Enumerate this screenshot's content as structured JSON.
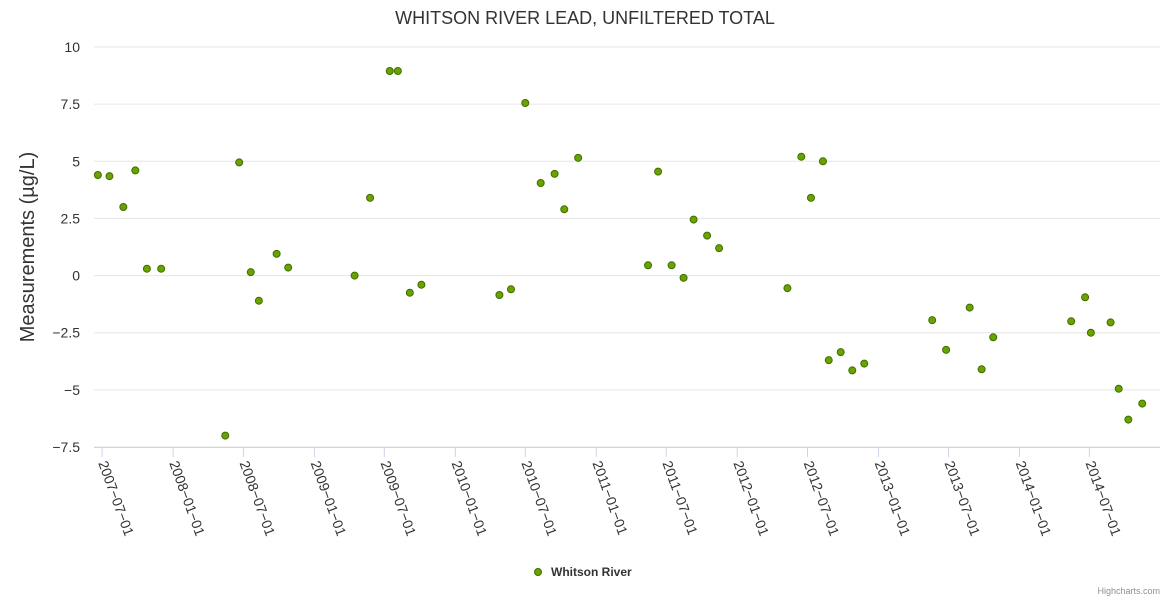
{
  "chart_data": {
    "type": "scatter",
    "title": "WHITSON RIVER LEAD, UNFILTERED TOTAL",
    "ylabel": "Measurements (µg/L)",
    "xlabel": "",
    "ylim": [
      -7.5,
      10
    ],
    "xlim": [
      "2007-06-10",
      "2014-12-31"
    ],
    "grid": true,
    "y_ticks": [
      {
        "value": 10,
        "label": "10"
      },
      {
        "value": 7.5,
        "label": "7.5"
      },
      {
        "value": 5,
        "label": "5"
      },
      {
        "value": 2.5,
        "label": "2.5"
      },
      {
        "value": 0,
        "label": "0"
      },
      {
        "value": -2.5,
        "label": "−2.5"
      },
      {
        "value": -5,
        "label": "−5"
      },
      {
        "value": -7.5,
        "label": "−7.5"
      }
    ],
    "x_ticks": [
      {
        "date": "2007-07-01",
        "label": "2007−07−01"
      },
      {
        "date": "2008-01-01",
        "label": "2008−01−01"
      },
      {
        "date": "2008-07-01",
        "label": "2008−07−01"
      },
      {
        "date": "2009-01-01",
        "label": "2009−01−01"
      },
      {
        "date": "2009-07-01",
        "label": "2009−07−01"
      },
      {
        "date": "2010-01-01",
        "label": "2010−01−01"
      },
      {
        "date": "2010-07-01",
        "label": "2010−07−01"
      },
      {
        "date": "2011-01-01",
        "label": "2011−01−01"
      },
      {
        "date": "2011-07-01",
        "label": "2011−07−01"
      },
      {
        "date": "2012-01-01",
        "label": "2012−01−01"
      },
      {
        "date": "2012-07-01",
        "label": "2012−07−01"
      },
      {
        "date": "2013-01-01",
        "label": "2013−01−01"
      },
      {
        "date": "2013-07-01",
        "label": "2013−07−01"
      },
      {
        "date": "2014-01-01",
        "label": "2014−01−01"
      },
      {
        "date": "2014-07-01",
        "label": "2014−07−01"
      }
    ],
    "series": [
      {
        "name": "Whitson River",
        "color": "#6aa300",
        "stroke": "#3f6e00",
        "points": [
          {
            "x": "2007-06-20",
            "y": 4.4
          },
          {
            "x": "2007-07-20",
            "y": 4.35
          },
          {
            "x": "2007-08-25",
            "y": 3.0
          },
          {
            "x": "2007-09-25",
            "y": 4.6
          },
          {
            "x": "2007-10-25",
            "y": 0.3
          },
          {
            "x": "2007-12-01",
            "y": 0.3
          },
          {
            "x": "2008-05-15",
            "y": -7.0
          },
          {
            "x": "2008-06-20",
            "y": 4.95
          },
          {
            "x": "2008-07-20",
            "y": 0.15
          },
          {
            "x": "2008-08-10",
            "y": -1.1
          },
          {
            "x": "2008-09-25",
            "y": 0.95
          },
          {
            "x": "2008-10-25",
            "y": 0.35
          },
          {
            "x": "2009-04-15",
            "y": 0.0
          },
          {
            "x": "2009-05-25",
            "y": 3.4
          },
          {
            "x": "2009-07-15",
            "y": 8.95
          },
          {
            "x": "2009-08-05",
            "y": 8.95
          },
          {
            "x": "2009-09-05",
            "y": -0.75
          },
          {
            "x": "2009-10-05",
            "y": -0.4
          },
          {
            "x": "2010-04-25",
            "y": -0.85
          },
          {
            "x": "2010-05-25",
            "y": -0.6
          },
          {
            "x": "2010-07-01",
            "y": 7.55
          },
          {
            "x": "2010-08-10",
            "y": 4.05
          },
          {
            "x": "2010-09-15",
            "y": 4.45
          },
          {
            "x": "2010-10-10",
            "y": 2.9
          },
          {
            "x": "2010-11-15",
            "y": 5.15
          },
          {
            "x": "2011-05-15",
            "y": 0.45
          },
          {
            "x": "2011-06-10",
            "y": 4.55
          },
          {
            "x": "2011-07-15",
            "y": 0.45
          },
          {
            "x": "2011-08-15",
            "y": -0.1
          },
          {
            "x": "2011-09-10",
            "y": 2.45
          },
          {
            "x": "2011-10-15",
            "y": 1.75
          },
          {
            "x": "2011-11-15",
            "y": 1.2
          },
          {
            "x": "2012-05-10",
            "y": -0.55
          },
          {
            "x": "2012-06-15",
            "y": 5.2
          },
          {
            "x": "2012-07-10",
            "y": 3.4
          },
          {
            "x": "2012-08-10",
            "y": 5.0
          },
          {
            "x": "2012-08-25",
            "y": -3.7
          },
          {
            "x": "2012-09-25",
            "y": -3.35
          },
          {
            "x": "2012-10-25",
            "y": -4.15
          },
          {
            "x": "2012-11-25",
            "y": -3.85
          },
          {
            "x": "2013-05-20",
            "y": -1.95
          },
          {
            "x": "2013-06-25",
            "y": -3.25
          },
          {
            "x": "2013-08-25",
            "y": -1.4
          },
          {
            "x": "2013-09-25",
            "y": -4.1
          },
          {
            "x": "2013-10-25",
            "y": -2.7
          },
          {
            "x": "2014-05-15",
            "y": -2.0
          },
          {
            "x": "2014-06-20",
            "y": -0.95
          },
          {
            "x": "2014-07-05",
            "y": -2.5
          },
          {
            "x": "2014-08-25",
            "y": -2.05
          },
          {
            "x": "2014-09-15",
            "y": -4.95
          },
          {
            "x": "2014-10-10",
            "y": -6.3
          },
          {
            "x": "2014-11-15",
            "y": -5.6
          }
        ]
      }
    ],
    "legend": {
      "position": "bottom-center",
      "label": "Whitson River"
    }
  },
  "credits": "Highcharts.com"
}
